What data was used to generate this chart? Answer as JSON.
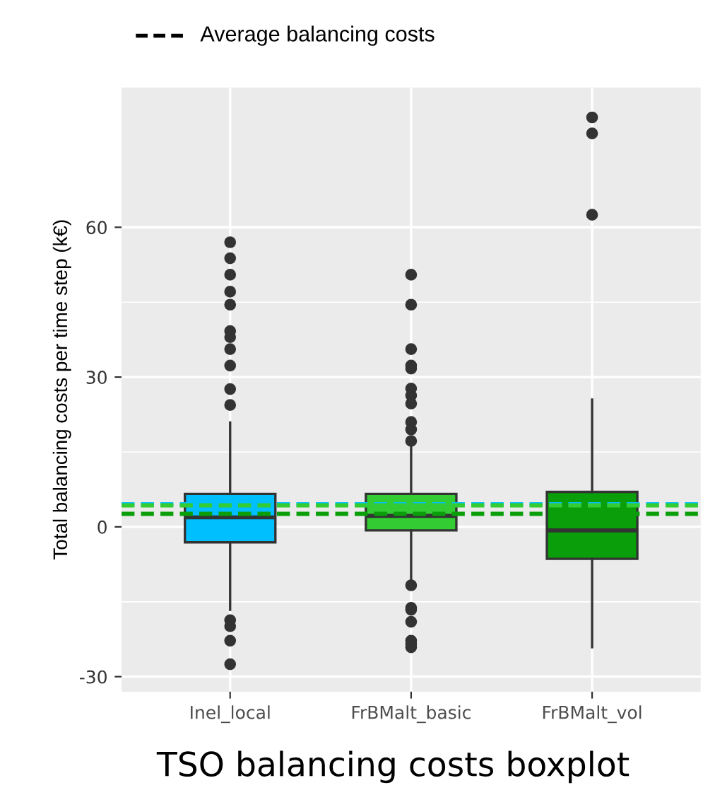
{
  "chart_data": {
    "type": "box",
    "title": "TSO balancing costs boxplot",
    "ylabel": "Total balancing costs per time step (k€)",
    "categories": [
      "Inel_local",
      "FrBMalt_basic",
      "FrBMalt_vol"
    ],
    "colors": [
      "#00bfff",
      "#33cc33",
      "#0a9e0a"
    ],
    "boxes": [
      {
        "low": -16.6,
        "q1": -3.1,
        "median": 1.9,
        "q3": 6.6,
        "high": 20.9,
        "outliers": [
          57.0,
          53.8,
          50.5,
          47.1,
          44.5,
          39.2,
          38.0,
          35.6,
          32.3,
          27.6,
          24.4,
          -18.7,
          -19.9,
          -22.8,
          -27.5
        ]
      },
      {
        "low": -10.9,
        "q1": -0.7,
        "median": 2.2,
        "q3": 6.6,
        "high": 16.4,
        "outliers": [
          50.5,
          44.5,
          35.6,
          32.3,
          31.7,
          27.7,
          26.3,
          24.7,
          21.0,
          19.5,
          17.2,
          -11.7,
          -16.2,
          -16.6,
          -19.0,
          -22.8,
          -23.5,
          -24.1
        ]
      },
      {
        "low": -24.1,
        "q1": -6.4,
        "median": -0.7,
        "q3": 7.0,
        "high": 25.5,
        "outliers": [
          82.0,
          78.8,
          62.5
        ]
      }
    ],
    "ylim": [
      -33,
      88
    ],
    "yticks": [
      -30,
      0,
      30,
      60
    ],
    "ref_lines": [
      {
        "axis": "y",
        "value": 4.5,
        "color": "#00bfff",
        "line_style": "dashed"
      },
      {
        "axis": "y",
        "value": 4.3,
        "color": "#33cc33",
        "line_style": "dashed"
      },
      {
        "axis": "y",
        "value": 2.6,
        "color": "#0a9e0a",
        "line_style": "dashed"
      }
    ],
    "annotations": [
      "Average balancing costs"
    ],
    "grid": true
  }
}
